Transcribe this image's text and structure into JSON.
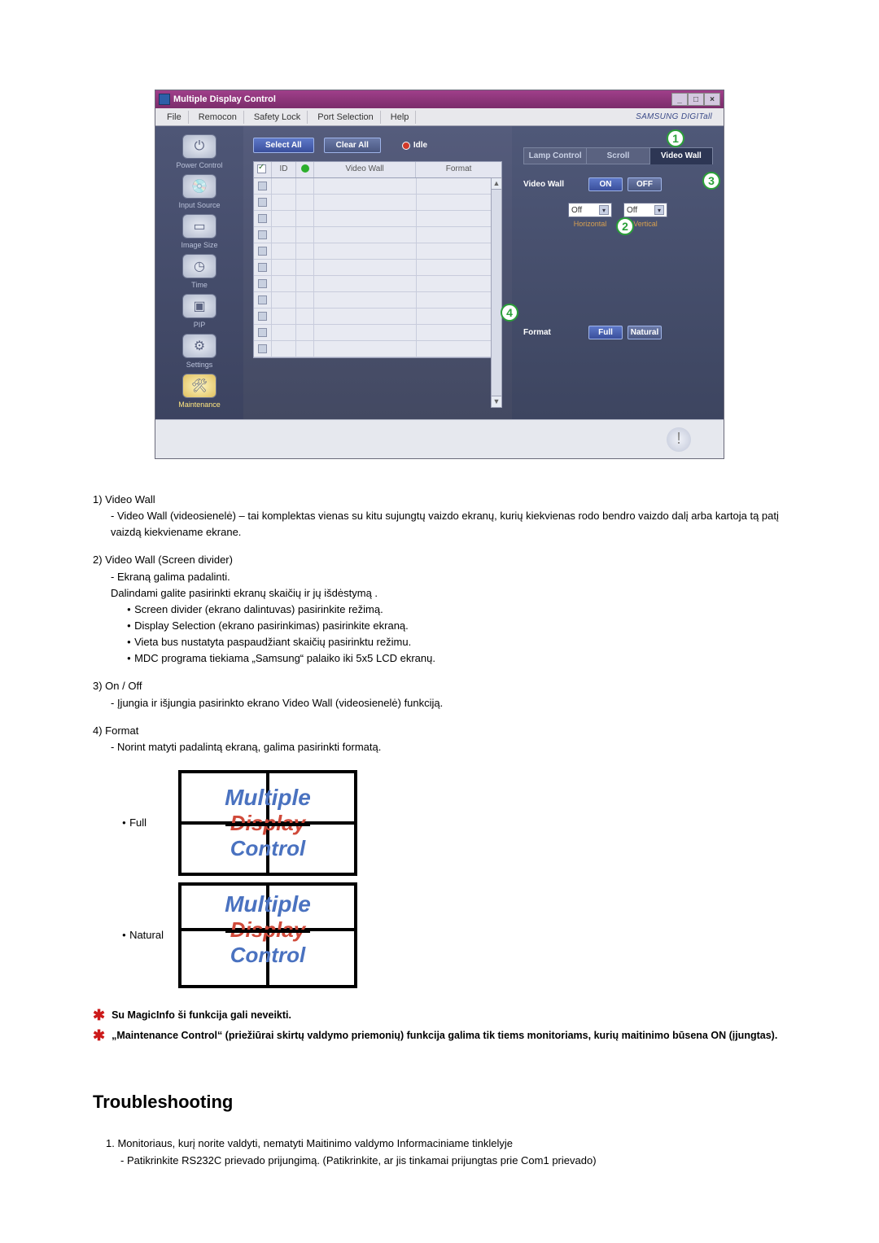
{
  "app": {
    "title": "Multiple Display Control",
    "menu": [
      "File",
      "Remocon",
      "Safety Lock",
      "Port Selection",
      "Help"
    ],
    "brand": "SAMSUNG DIGITall",
    "winbuttons": [
      "_",
      "□",
      "×"
    ],
    "leftnav": [
      {
        "label": "Power Control",
        "glyph": "⏻"
      },
      {
        "label": "Input Source",
        "glyph": "💿"
      },
      {
        "label": "Image Size",
        "glyph": "▭"
      },
      {
        "label": "Time",
        "glyph": "◷"
      },
      {
        "label": "PIP",
        "glyph": "▣"
      },
      {
        "label": "Settings",
        "glyph": "⚙"
      },
      {
        "label": "Maintenance",
        "glyph": "🛠"
      }
    ],
    "topbar": {
      "select_all": "Select All",
      "clear_all": "Clear All",
      "idle": "Idle"
    },
    "grid": {
      "headers": {
        "id": "ID",
        "videowall": "Video Wall",
        "format": "Format"
      },
      "row_count": 11
    },
    "right": {
      "tabs": [
        "Lamp Control",
        "Scroll",
        "Video Wall"
      ],
      "active_tab": 2,
      "videowall_label": "Video Wall",
      "on": "ON",
      "off": "OFF",
      "dropdowns": {
        "horizontal": {
          "value": "Off",
          "label": "Horizontal"
        },
        "vertical": {
          "value": "Off",
          "label": "Vertical"
        }
      },
      "format_label": "Format",
      "format_full": "Full",
      "format_natural": "Natural",
      "badges": {
        "b1": "1",
        "b2": "2",
        "b3": "3",
        "b4": "4"
      }
    },
    "info_glyph": "!"
  },
  "doc": {
    "items": {
      "n1": "1)  Video Wall",
      "n1a": "- Video Wall (videosienelė) – tai komplektas vienas su kitu sujungtų vaizdo ekranų, kurių kiekvienas rodo bendro vaizdo dalį arba kartoja tą patį vaizdą kiekviename ekrane.",
      "n2": "2)  Video Wall (Screen divider)",
      "n2a": "- Ekraną galima padalinti.",
      "n2b": "Dalindami galite pasirinkti ekranų skaičių ir jų išdėstymą .",
      "b1": "Screen divider (ekrano dalintuvas) pasirinkite režimą.",
      "b2": "Display Selection (ekrano pasirinkimas) pasirinkite ekraną.",
      "b3": "Vieta bus nustatyta paspaudžiant skaičių pasirinktu režimu.",
      "b4": "MDC programa tiekiama „Samsung“ palaiko iki 5x5 LCD ekranų.",
      "n3": "3)  On / Off",
      "n3a": "- Įjungia ir išjungia pasirinkto ekrano Video Wall (videosienelė) funkciją.",
      "n4": "4)  Format",
      "n4a": "- Norint matyti padalintą ekraną, galima pasirinkti formatą."
    },
    "fmt": {
      "full": "Full",
      "natural": "Natural"
    },
    "tile": {
      "l1": "Multiple",
      "l2": "Display",
      "l3": "Control"
    },
    "stars": {
      "s1": "Su MagicInfo ši funkcija gali neveikti.",
      "s2": "„Maintenance Control“ (priežiūrai skirtų valdymo priemonių) funkcija galima tik tiems monitoriams, kurių maitinimo būsena ON (įjungtas)."
    },
    "troubleshooting": {
      "heading": "Troubleshooting",
      "n1": "1. Monitoriaus, kurį norite valdyti, nematyti Maitinimo valdymo Informaciniame tinklelyje",
      "n1a": "- Patikrinkite RS232C prievado prijungimą. (Patikrinkite, ar jis tinkamai prijungtas prie Com1 prievado)"
    }
  }
}
